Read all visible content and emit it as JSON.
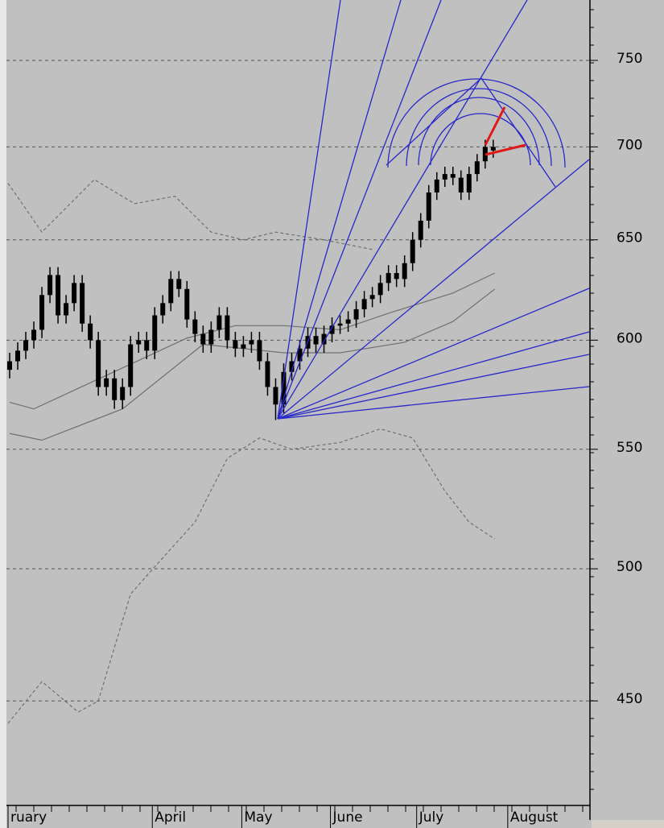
{
  "chart_data": {
    "type": "candlestick",
    "x": [
      0,
      1,
      2,
      3,
      4,
      5,
      6,
      7,
      8,
      9,
      10,
      11,
      12,
      13,
      14,
      15,
      16,
      17,
      18,
      19,
      20,
      21,
      22,
      23,
      24,
      25,
      26,
      27,
      28,
      29,
      30,
      31,
      32,
      33,
      34,
      35,
      36,
      37,
      38,
      39,
      40,
      41,
      42,
      43,
      44,
      45,
      46,
      47,
      48,
      49,
      50,
      51,
      52,
      53,
      54,
      55,
      56,
      57,
      58,
      59,
      60
    ],
    "open": [
      586,
      590,
      595,
      600,
      605,
      622,
      632,
      612,
      618,
      628,
      608,
      600,
      578,
      582,
      572,
      578,
      598,
      600,
      595,
      612,
      618,
      630,
      625,
      610,
      603,
      598,
      605,
      612,
      600,
      596,
      598,
      600,
      590,
      578,
      570,
      585,
      590,
      596,
      602,
      598,
      603,
      607,
      608,
      610,
      615,
      620,
      622,
      628,
      633,
      630,
      638,
      650,
      660,
      675,
      682,
      685,
      683,
      675,
      685,
      692,
      700
    ],
    "high": [
      594,
      599,
      604,
      609,
      626,
      636,
      636,
      622,
      632,
      632,
      612,
      604,
      586,
      586,
      582,
      602,
      604,
      604,
      616,
      622,
      634,
      634,
      629,
      614,
      607,
      609,
      616,
      616,
      604,
      602,
      604,
      604,
      594,
      582,
      589,
      594,
      600,
      606,
      606,
      607,
      611,
      612,
      614,
      619,
      624,
      626,
      632,
      637,
      637,
      642,
      654,
      664,
      679,
      686,
      689,
      689,
      687,
      689,
      696,
      704,
      704
    ],
    "low": [
      582,
      586,
      591,
      596,
      601,
      618,
      608,
      608,
      614,
      604,
      596,
      574,
      574,
      568,
      568,
      574,
      594,
      591,
      591,
      608,
      614,
      621,
      606,
      599,
      594,
      594,
      601,
      596,
      592,
      592,
      594,
      586,
      574,
      563,
      566,
      581,
      586,
      592,
      594,
      594,
      599,
      603,
      604,
      606,
      611,
      616,
      618,
      624,
      626,
      626,
      634,
      646,
      656,
      671,
      678,
      679,
      671,
      671,
      681,
      688,
      694
    ],
    "close": [
      590,
      595,
      600,
      605,
      622,
      632,
      612,
      618,
      628,
      608,
      600,
      578,
      582,
      572,
      578,
      598,
      600,
      595,
      612,
      618,
      630,
      625,
      610,
      603,
      598,
      605,
      612,
      600,
      596,
      598,
      600,
      590,
      578,
      570,
      585,
      590,
      596,
      602,
      598,
      603,
      607,
      608,
      610,
      615,
      620,
      622,
      628,
      633,
      630,
      638,
      650,
      660,
      675,
      682,
      685,
      683,
      675,
      685,
      692,
      700,
      698
    ],
    "color": "#000000",
    "series": [
      {
        "color": "#707070",
        "dash": false,
        "x": [
          0,
          3,
          22,
          28,
          34,
          41,
          47,
          55,
          60.2
        ],
        "values": [
          571,
          568,
          601,
          607,
          607,
          605,
          613,
          623,
          633
        ]
      },
      {
        "color": "#707070",
        "dash": false,
        "x": [
          0,
          4,
          14,
          24,
          34,
          41,
          49,
          55,
          60.2
        ],
        "values": [
          557,
          554,
          568,
          598,
          594,
          594,
          599,
          609,
          625
        ]
      },
      {
        "color": "#707070",
        "dash": true,
        "x": [
          -0.2,
          4,
          10.5,
          15.5,
          20.5,
          25,
          29,
          33,
          39,
          45
        ],
        "values": [
          680,
          654,
          682,
          669,
          673,
          654,
          650,
          654,
          650,
          645
        ]
      },
      {
        "color": "#707070",
        "dash": true,
        "x": [
          -0.2,
          4,
          8.5,
          11,
          15,
          17.5,
          23,
          27,
          31,
          35,
          41,
          46,
          50,
          54,
          57,
          60.2
        ],
        "values": [
          442,
          457,
          446,
          450,
          490,
          499,
          519,
          546,
          555,
          550,
          553,
          559,
          555,
          532,
          519,
          512
        ]
      }
    ],
    "xlim": [
      -0.2,
      72.2
    ],
    "xticks": [
      {
        "value": -0.2,
        "label": "ruary"
      },
      {
        "value": 17.7,
        "label": "April"
      },
      {
        "value": 28.8,
        "label": "May"
      },
      {
        "value": 39.8,
        "label": "June"
      },
      {
        "value": 50.5,
        "label": "July"
      },
      {
        "value": 61.8,
        "label": "August"
      }
    ],
    "ylim": [
      414,
      787
    ],
    "yticks": [
      450,
      500,
      550,
      600,
      650,
      700,
      750
    ],
    "log": true,
    "grid": true
  }
}
